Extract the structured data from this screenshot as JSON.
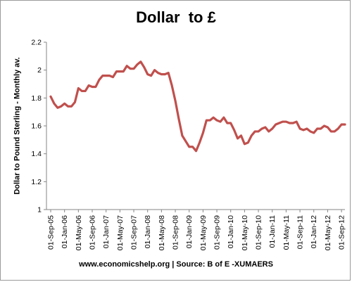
{
  "chart_data": {
    "type": "line",
    "title": "Dollar  to £",
    "ylabel": "Dollar to Pound Sterling - Monthly av.",
    "xlabel": "",
    "ylim": [
      1,
      2.2
    ],
    "yticks": [
      1,
      1.2,
      1.4,
      1.6,
      1.8,
      2,
      2.2
    ],
    "ytick_labels": [
      "1",
      "1.2",
      "1.4",
      "1.6",
      "1.8",
      "2",
      "2.2"
    ],
    "legend": "none",
    "grid": false,
    "x_start": "2005-09",
    "xtick_labels": [
      "01-Sep-05",
      "01-Jan-06",
      "01-May-06",
      "01-Sep-06",
      "01-Jan-07",
      "01-May-07",
      "01-Sep-07",
      "01-Jan-08",
      "01-May-08",
      "01-Sep-08",
      "01-Jan-09",
      "01-May-09",
      "01-Sep-09",
      "01-Jan-10",
      "01-May-10",
      "01-Sep-10",
      "01-Jan-11",
      "01-May-11",
      "01-Sep-11",
      "01-Jan-12",
      "01-May-12",
      "01-Sep-12"
    ],
    "line_color": "#c0504d",
    "series": [
      {
        "values": [
          1.81,
          1.76,
          1.73,
          1.74,
          1.76,
          1.74,
          1.74,
          1.77,
          1.87,
          1.85,
          1.85,
          1.89,
          1.88,
          1.88,
          1.93,
          1.96,
          1.96,
          1.96,
          1.95,
          1.99,
          1.99,
          1.99,
          2.03,
          2.01,
          2.01,
          2.04,
          2.06,
          2.02,
          1.97,
          1.96,
          2.0,
          1.98,
          1.97,
          1.97,
          1.98,
          1.89,
          1.78,
          1.65,
          1.53,
          1.49,
          1.45,
          1.45,
          1.42,
          1.48,
          1.55,
          1.64,
          1.64,
          1.66,
          1.64,
          1.63,
          1.66,
          1.62,
          1.62,
          1.57,
          1.51,
          1.53,
          1.47,
          1.48,
          1.53,
          1.56,
          1.56,
          1.58,
          1.59,
          1.56,
          1.58,
          1.61,
          1.62,
          1.63,
          1.63,
          1.62,
          1.62,
          1.63,
          1.58,
          1.57,
          1.58,
          1.56,
          1.55,
          1.58,
          1.58,
          1.6,
          1.59,
          1.56,
          1.56,
          1.58,
          1.61,
          1.61
        ]
      }
    ]
  },
  "footer": {
    "source_text": "www.economicshelp.org | Source: B of E -XUMAERS"
  }
}
